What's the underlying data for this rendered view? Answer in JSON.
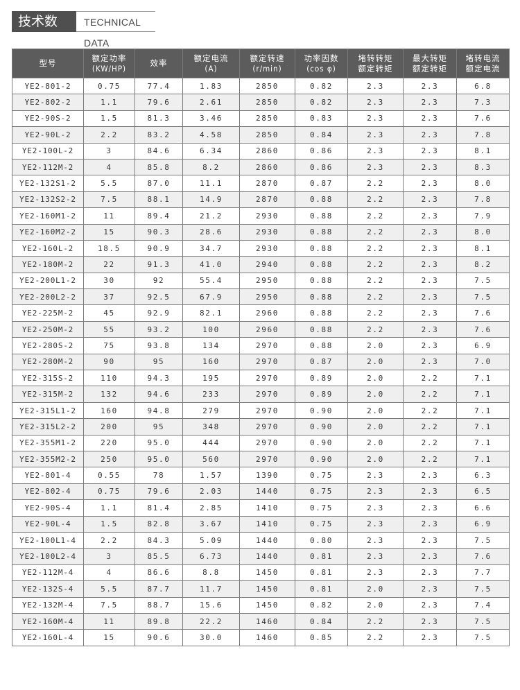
{
  "title": {
    "cn": "技术数据",
    "en": "TECHNICAL DATA"
  },
  "colors": {
    "header_bg": "#5c5c5c",
    "alt_row": "#efefef",
    "title_bg": "#4f4f4f"
  },
  "table": {
    "headers": [
      [
        "型号"
      ],
      [
        "额定功率",
        "(KW/HP)"
      ],
      [
        "效率"
      ],
      [
        "额定电流",
        "(A)"
      ],
      [
        "额定转速",
        "(r/min)"
      ],
      [
        "功率因数",
        "(cos φ)"
      ],
      [
        "堵转转矩",
        "额定转矩"
      ],
      [
        "最大转矩",
        "额定转矩"
      ],
      [
        "堵转电流",
        "额定电流"
      ]
    ],
    "rows": [
      [
        "YE2-801-2",
        "0.75",
        "77.4",
        "1.83",
        "2850",
        "0.82",
        "2.3",
        "2.3",
        "6.8"
      ],
      [
        "YE2-802-2",
        "1.1",
        "79.6",
        "2.61",
        "2850",
        "0.82",
        "2.3",
        "2.3",
        "7.3"
      ],
      [
        "YE2-90S-2",
        "1.5",
        "81.3",
        "3.46",
        "2850",
        "0.83",
        "2.3",
        "2.3",
        "7.6"
      ],
      [
        "YE2-90L-2",
        "2.2",
        "83.2",
        "4.58",
        "2850",
        "0.84",
        "2.3",
        "2.3",
        "7.8"
      ],
      [
        "YE2-100L-2",
        "3",
        "84.6",
        "6.34",
        "2860",
        "0.86",
        "2.3",
        "2.3",
        "8.1"
      ],
      [
        "YE2-112M-2",
        "4",
        "85.8",
        "8.2",
        "2860",
        "0.86",
        "2.3",
        "2.3",
        "8.3"
      ],
      [
        "YE2-132S1-2",
        "5.5",
        "87.0",
        "11.1",
        "2870",
        "0.87",
        "2.2",
        "2.3",
        "8.0"
      ],
      [
        "YE2-132S2-2",
        "7.5",
        "88.1",
        "14.9",
        "2870",
        "0.88",
        "2.2",
        "2.3",
        "7.8"
      ],
      [
        "YE2-160M1-2",
        "11",
        "89.4",
        "21.2",
        "2930",
        "0.88",
        "2.2",
        "2.3",
        "7.9"
      ],
      [
        "YE2-160M2-2",
        "15",
        "90.3",
        "28.6",
        "2930",
        "0.88",
        "2.2",
        "2.3",
        "8.0"
      ],
      [
        "YE2-160L-2",
        "18.5",
        "90.9",
        "34.7",
        "2930",
        "0.88",
        "2.2",
        "2.3",
        "8.1"
      ],
      [
        "YE2-180M-2",
        "22",
        "91.3",
        "41.0",
        "2940",
        "0.88",
        "2.2",
        "2.3",
        "8.2"
      ],
      [
        "YE2-200L1-2",
        "30",
        "92",
        "55.4",
        "2950",
        "0.88",
        "2.2",
        "2.3",
        "7.5"
      ],
      [
        "YE2-200L2-2",
        "37",
        "92.5",
        "67.9",
        "2950",
        "0.88",
        "2.2",
        "2.3",
        "7.5"
      ],
      [
        "YE2-225M-2",
        "45",
        "92.9",
        "82.1",
        "2960",
        "0.88",
        "2.2",
        "2.3",
        "7.6"
      ],
      [
        "YE2-250M-2",
        "55",
        "93.2",
        "100",
        "2960",
        "0.88",
        "2.2",
        "2.3",
        "7.6"
      ],
      [
        "YE2-280S-2",
        "75",
        "93.8",
        "134",
        "2970",
        "0.88",
        "2.0",
        "2.3",
        "6.9"
      ],
      [
        "YE2-280M-2",
        "90",
        "95",
        "160",
        "2970",
        "0.87",
        "2.0",
        "2.3",
        "7.0"
      ],
      [
        "YE2-315S-2",
        "110",
        "94.3",
        "195",
        "2970",
        "0.89",
        "2.0",
        "2.2",
        "7.1"
      ],
      [
        "YE2-315M-2",
        "132",
        "94.6",
        "233",
        "2970",
        "0.89",
        "2.0",
        "2.2",
        "7.1"
      ],
      [
        "YE2-315L1-2",
        "160",
        "94.8",
        "279",
        "2970",
        "0.90",
        "2.0",
        "2.2",
        "7.1"
      ],
      [
        "YE2-315L2-2",
        "200",
        "95",
        "348",
        "2970",
        "0.90",
        "2.0",
        "2.2",
        "7.1"
      ],
      [
        "YE2-355M1-2",
        "220",
        "95.0",
        "444",
        "2970",
        "0.90",
        "2.0",
        "2.2",
        "7.1"
      ],
      [
        "YE2-355M2-2",
        "250",
        "95.0",
        "560",
        "2970",
        "0.90",
        "2.0",
        "2.2",
        "7.1"
      ],
      [
        "YE2-801-4",
        "0.55",
        "78",
        "1.57",
        "1390",
        "0.75",
        "2.3",
        "2.3",
        "6.3"
      ],
      [
        "YE2-802-4",
        "0.75",
        "79.6",
        "2.03",
        "1440",
        "0.75",
        "2.3",
        "2.3",
        "6.5"
      ],
      [
        "YE2-90S-4",
        "1.1",
        "81.4",
        "2.85",
        "1410",
        "0.75",
        "2.3",
        "2.3",
        "6.6"
      ],
      [
        "YE2-90L-4",
        "1.5",
        "82.8",
        "3.67",
        "1410",
        "0.75",
        "2.3",
        "2.3",
        "6.9"
      ],
      [
        "YE2-100L1-4",
        "2.2",
        "84.3",
        "5.09",
        "1440",
        "0.80",
        "2.3",
        "2.3",
        "7.5"
      ],
      [
        "YE2-100L2-4",
        "3",
        "85.5",
        "6.73",
        "1440",
        "0.81",
        "2.3",
        "2.3",
        "7.6"
      ],
      [
        "YE2-112M-4",
        "4",
        "86.6",
        "8.8",
        "1450",
        "0.81",
        "2.3",
        "2.3",
        "7.7"
      ],
      [
        "YE2-132S-4",
        "5.5",
        "87.7",
        "11.7",
        "1450",
        "0.81",
        "2.0",
        "2.3",
        "7.5"
      ],
      [
        "YE2-132M-4",
        "7.5",
        "88.7",
        "15.6",
        "1450",
        "0.82",
        "2.0",
        "2.3",
        "7.4"
      ],
      [
        "YE2-160M-4",
        "11",
        "89.8",
        "22.2",
        "1460",
        "0.84",
        "2.2",
        "2.3",
        "7.5"
      ],
      [
        "YE2-160L-4",
        "15",
        "90.6",
        "30.0",
        "1460",
        "0.85",
        "2.2",
        "2.3",
        "7.5"
      ]
    ]
  }
}
